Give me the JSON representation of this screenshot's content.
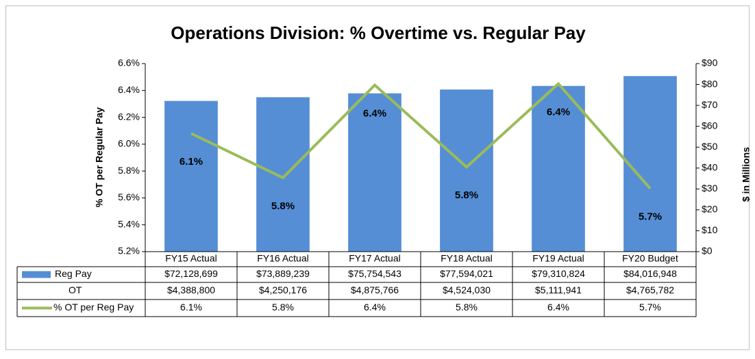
{
  "chart_data": {
    "type": "bar",
    "title": "Operations Division: % Overtime vs. Regular Pay",
    "y_label": "% OT per Regular Pay",
    "y2_label": "$ in Millions",
    "categories": [
      "FY15 Actual",
      "FY16 Actual",
      "FY17 Actual",
      "FY18 Actual",
      "FY19 Actual",
      "FY20 Budget"
    ],
    "series": [
      {
        "name": "Reg Pay",
        "type": "bar",
        "axis": "y2",
        "color": "#558ed5",
        "values": [
          72.128699,
          73.889239,
          75.754543,
          77.594021,
          79.310824,
          84.016948
        ],
        "value_labels": [
          "$72,128,699",
          "$73,889,239",
          "$75,754,543",
          "$77,594,021",
          "$79,310,824",
          "$84,016,948"
        ]
      },
      {
        "name": "OT",
        "value_labels": [
          "$4,388,800",
          "$4,250,176",
          "$4,875,766",
          "$4,524,030",
          "$5,111,941",
          "$4,765,782"
        ]
      },
      {
        "name": "% OT per Reg Pay",
        "type": "line",
        "color": "#9bbb59",
        "values": [
          6.08,
          5.75,
          6.44,
          5.83,
          6.45,
          5.67
        ],
        "value_labels": [
          "6.1%",
          "5.8%",
          "6.4%",
          "5.8%",
          "6.4%",
          "5.7%"
        ]
      }
    ],
    "ylim": [
      5.2,
      6.6
    ],
    "yticks": [
      {
        "value": 5.2,
        "label": "5.2%"
      },
      {
        "value": 5.4,
        "label": "5.4%"
      },
      {
        "value": 5.6,
        "label": "5.6%"
      },
      {
        "value": 5.8,
        "label": "5.8%"
      },
      {
        "value": 6.0,
        "label": "6.0%"
      },
      {
        "value": 6.2,
        "label": "6.2%"
      },
      {
        "value": 6.4,
        "label": "6.4%"
      },
      {
        "value": 6.6,
        "label": "6.6%"
      }
    ],
    "y2lim": [
      0,
      90
    ],
    "y2ticks": [
      {
        "value": 0,
        "label": "$0"
      },
      {
        "value": 10,
        "label": "$10"
      },
      {
        "value": 20,
        "label": "$20"
      },
      {
        "value": 30,
        "label": "$30"
      },
      {
        "value": 40,
        "label": "$40"
      },
      {
        "value": 50,
        "label": "$50"
      },
      {
        "value": 60,
        "label": "$60"
      },
      {
        "value": 70,
        "label": "$70"
      },
      {
        "value": 80,
        "label": "$80"
      },
      {
        "value": 90,
        "label": "$90"
      }
    ],
    "grid": false
  }
}
